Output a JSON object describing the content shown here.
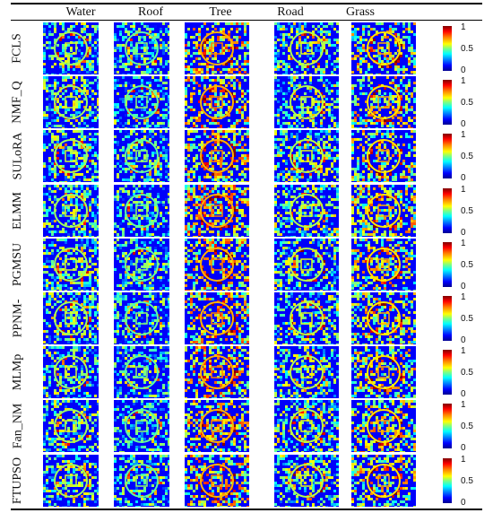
{
  "columns": [
    "Water",
    "Roof",
    "Tree",
    "Road",
    "Grass"
  ],
  "rows": [
    {
      "label": "FCLS"
    },
    {
      "label": "NMF_Q"
    },
    {
      "label": "SULoRA"
    },
    {
      "label": "ELMM"
    },
    {
      "label": "PGMSU"
    },
    {
      "label": "PPNM-"
    },
    {
      "label": "MLMp"
    },
    {
      "label": "Fan_NM"
    },
    {
      "label": "FTUPSO"
    }
  ],
  "colorbar": {
    "ticks": [
      "1",
      "0.5",
      "0"
    ],
    "colormap": "jet"
  },
  "colors": {
    "low": "#00008f",
    "high": "#7f0000"
  }
}
